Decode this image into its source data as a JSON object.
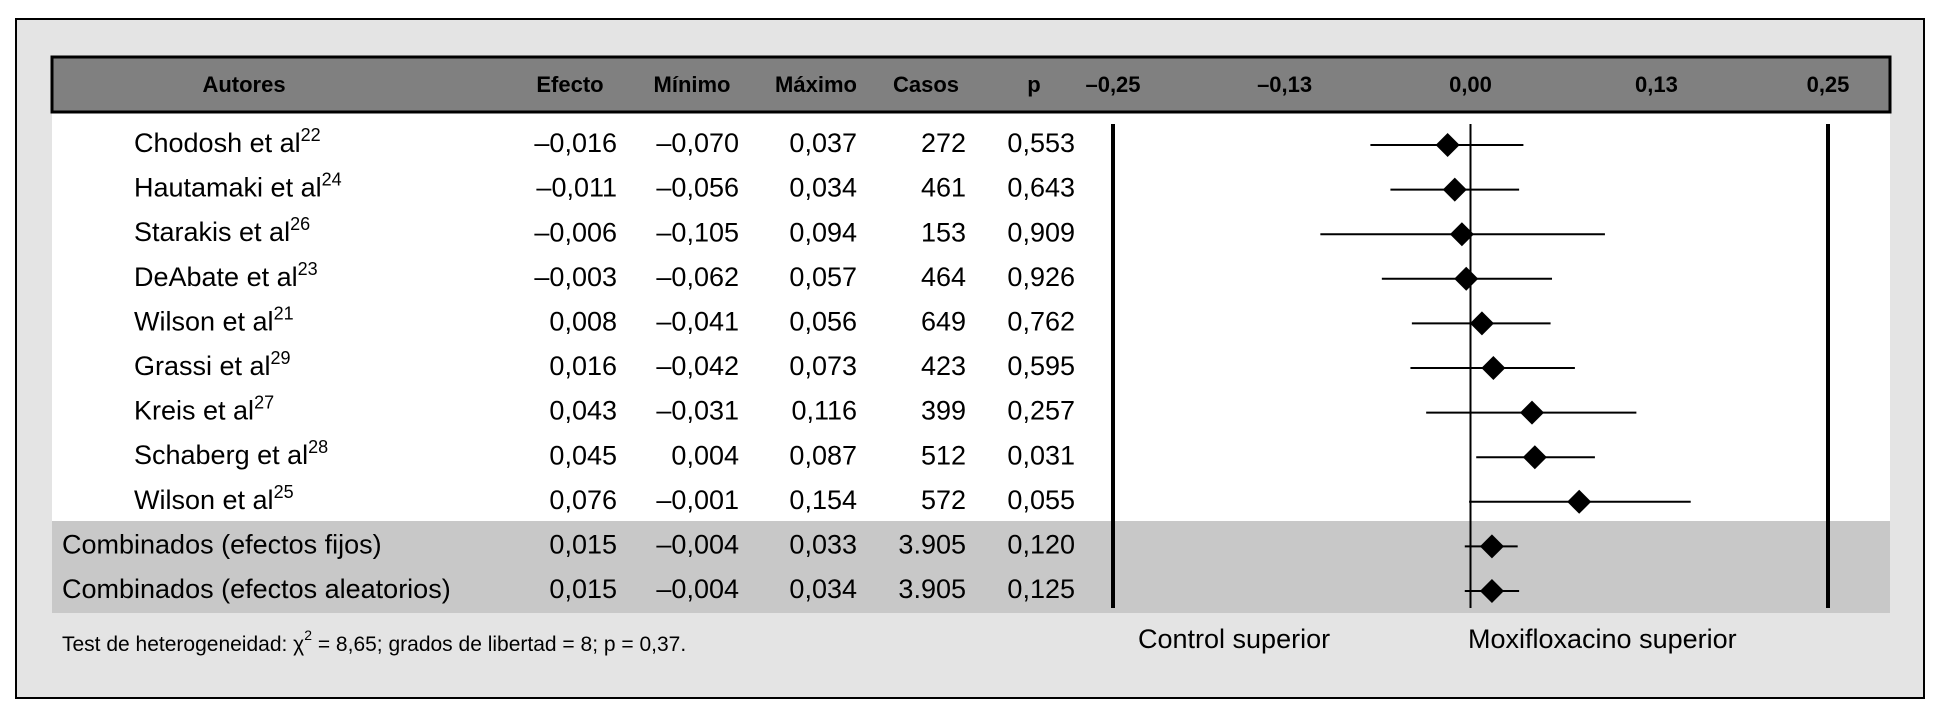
{
  "chart_data": {
    "type": "forest",
    "headers": [
      "Autores",
      "Efecto",
      "Mínimo",
      "Máximo",
      "Casos",
      "p"
    ],
    "categories": [
      "Chodosh et al",
      "Hautamaki et al",
      "Starakis et al",
      "DeAbate et al",
      "Wilson et al",
      "Grassi et al",
      "Kreis et al",
      "Schaberg et al",
      "Wilson et al",
      "Combinados (efectos fijos)",
      "Combinados (efectos aleatorios)"
    ],
    "superscripts": [
      "22",
      "24",
      "26",
      "23",
      "21",
      "29",
      "27",
      "28",
      "25",
      null,
      null
    ],
    "effect": {
      "values": [
        -0.016,
        -0.011,
        -0.006,
        -0.003,
        0.008,
        0.016,
        0.043,
        0.045,
        0.076,
        0.015,
        0.015
      ],
      "value_labels": [
        "–0,016",
        "–0,011",
        "–0,006",
        "–0,003",
        "0,008",
        "0,016",
        "0,043",
        "0,045",
        "0,076",
        "0,015",
        "0,015"
      ]
    },
    "lower": {
      "values": [
        -0.07,
        -0.056,
        -0.105,
        -0.062,
        -0.041,
        -0.042,
        -0.031,
        0.004,
        -0.001,
        -0.004,
        -0.004
      ],
      "value_labels": [
        "–0,070",
        "–0,056",
        "–0,105",
        "–0,062",
        "–0,041",
        "–0,042",
        "–0,031",
        "0,004",
        "–0,001",
        "–0,004",
        "–0,004"
      ]
    },
    "upper": {
      "values": [
        0.037,
        0.034,
        0.094,
        0.057,
        0.056,
        0.073,
        0.116,
        0.087,
        0.154,
        0.033,
        0.034
      ],
      "value_labels": [
        "0,037",
        "0,034",
        "0,094",
        "0,057",
        "0,056",
        "0,073",
        "0,116",
        "0,087",
        "0,154",
        "0,033",
        "0,034"
      ]
    },
    "cases": [
      "272",
      "461",
      "153",
      "464",
      "649",
      "423",
      "399",
      "512",
      "572",
      "3.905",
      "3.905"
    ],
    "p": [
      "0,553",
      "0,643",
      "0,909",
      "0,926",
      "0,762",
      "0,595",
      "0,257",
      "0,031",
      "0,055",
      "0,120",
      "0,125"
    ],
    "xlim": [
      -0.25,
      0.25
    ],
    "xticks": [
      {
        "value": -0.25,
        "label": "–0,25"
      },
      {
        "value": -0.13,
        "label": "–0,13"
      },
      {
        "value": 0,
        "label": "0,00"
      },
      {
        "value": 0.13,
        "label": "0,13"
      },
      {
        "value": 0.25,
        "label": "0,25"
      }
    ],
    "footnote": [
      "Test de heterogeneidad: χ",
      "2",
      " = 8,65; grados de libertad = 8; p = 0,37."
    ],
    "annotations": [
      "Control superior",
      "Moxifloxacino superior"
    ],
    "color": "#000000"
  }
}
